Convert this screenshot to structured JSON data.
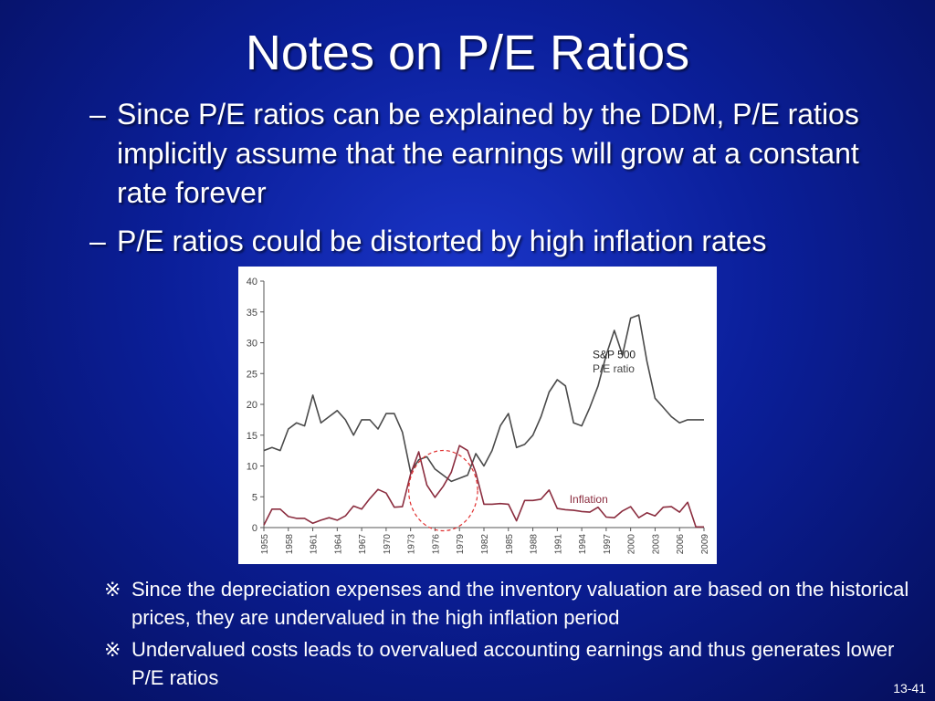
{
  "slide": {
    "title": "Notes on P/E Ratios",
    "bullet_marker": "–",
    "bullets": [
      "Since P/E ratios can be explained by the DDM, P/E ratios implicitly assume that the earnings will grow at a constant rate forever",
      "P/E ratios could be distorted by high inflation rates"
    ],
    "note_marker": "※",
    "notes": [
      "Since the depreciation expenses and the inventory valuation are based on the historical prices, they are undervalued in the high inflation period",
      "Undervalued costs leads to overvalued accounting earnings and thus generates lower P/E ratios"
    ],
    "page_number": "13-41"
  },
  "chart_data": {
    "type": "line",
    "ylim": [
      0,
      40
    ],
    "yticks": [
      "0",
      "5",
      "10",
      "15",
      "20",
      "25",
      "30",
      "35",
      "40"
    ],
    "xticks": [
      "1955",
      "1958",
      "1961",
      "1964",
      "1967",
      "1970",
      "1973",
      "1976",
      "1979",
      "1982",
      "1985",
      "1988",
      "1991",
      "1994",
      "1997",
      "2000",
      "2003",
      "2006",
      "2009"
    ],
    "x_range": [
      1955,
      2009
    ],
    "annotations": {
      "label_line1": "S&P 500",
      "label_line2": "P/E ratio",
      "inflation_label": "Inflation"
    },
    "highlight_years": [
      1973,
      1981
    ],
    "colors": {
      "pe": "#4a4a4a",
      "inflation": "#8b2d3f",
      "highlight": "#e03030",
      "axis": "#555555"
    },
    "series": [
      {
        "name": "P/E ratio",
        "x": [
          1955,
          1956,
          1957,
          1958,
          1959,
          1960,
          1961,
          1962,
          1963,
          1964,
          1965,
          1966,
          1967,
          1968,
          1969,
          1970,
          1971,
          1972,
          1973,
          1974,
          1975,
          1976,
          1977,
          1978,
          1979,
          1980,
          1981,
          1982,
          1983,
          1984,
          1985,
          1986,
          1987,
          1988,
          1989,
          1990,
          1991,
          1992,
          1993,
          1994,
          1995,
          1996,
          1997,
          1998,
          1999,
          2000,
          2001,
          2002,
          2003,
          2004,
          2005,
          2006,
          2007,
          2008,
          2009
        ],
        "values": [
          12.5,
          13,
          12.5,
          16,
          17,
          16.5,
          21.5,
          17,
          18,
          19,
          17.5,
          15,
          17.5,
          17.5,
          16,
          18.5,
          18.5,
          15.5,
          9,
          11,
          11.5,
          9.5,
          8.5,
          7.5,
          8,
          8.5,
          12,
          10,
          12.5,
          16.5,
          18.5,
          13,
          13.5,
          15,
          18,
          22,
          24,
          23,
          17,
          16.5,
          19.5,
          23,
          28,
          32,
          28,
          34,
          34.5,
          27,
          21,
          19.5,
          18,
          17,
          17.5,
          17.5,
          17.5
        ]
      },
      {
        "name": "Inflation",
        "x": [
          1955,
          1956,
          1957,
          1958,
          1959,
          1960,
          1961,
          1962,
          1963,
          1964,
          1965,
          1966,
          1967,
          1968,
          1969,
          1970,
          1971,
          1972,
          1973,
          1974,
          1975,
          1976,
          1977,
          1978,
          1979,
          1980,
          1981,
          1982,
          1983,
          1984,
          1985,
          1986,
          1987,
          1988,
          1989,
          1990,
          1991,
          1992,
          1993,
          1994,
          1995,
          1996,
          1997,
          1998,
          1999,
          2000,
          2001,
          2002,
          2003,
          2004,
          2005,
          2006,
          2007,
          2008,
          2009
        ],
        "values": [
          0.4,
          3,
          3,
          1.8,
          1.5,
          1.5,
          0.7,
          1.2,
          1.6,
          1.2,
          1.9,
          3.5,
          3,
          4.7,
          6.2,
          5.6,
          3.3,
          3.4,
          8.7,
          12.3,
          6.9,
          4.9,
          6.7,
          9,
          13.3,
          12.5,
          8.9,
          3.8,
          3.8,
          3.9,
          3.8,
          1.1,
          4.4,
          4.4,
          4.6,
          6.1,
          3.1,
          2.9,
          2.8,
          2.6,
          2.5,
          3.3,
          1.7,
          1.6,
          2.7,
          3.4,
          1.6,
          2.4,
          1.9,
          3.3,
          3.4,
          2.5,
          4.1,
          0.1,
          0.1
        ]
      }
    ]
  }
}
